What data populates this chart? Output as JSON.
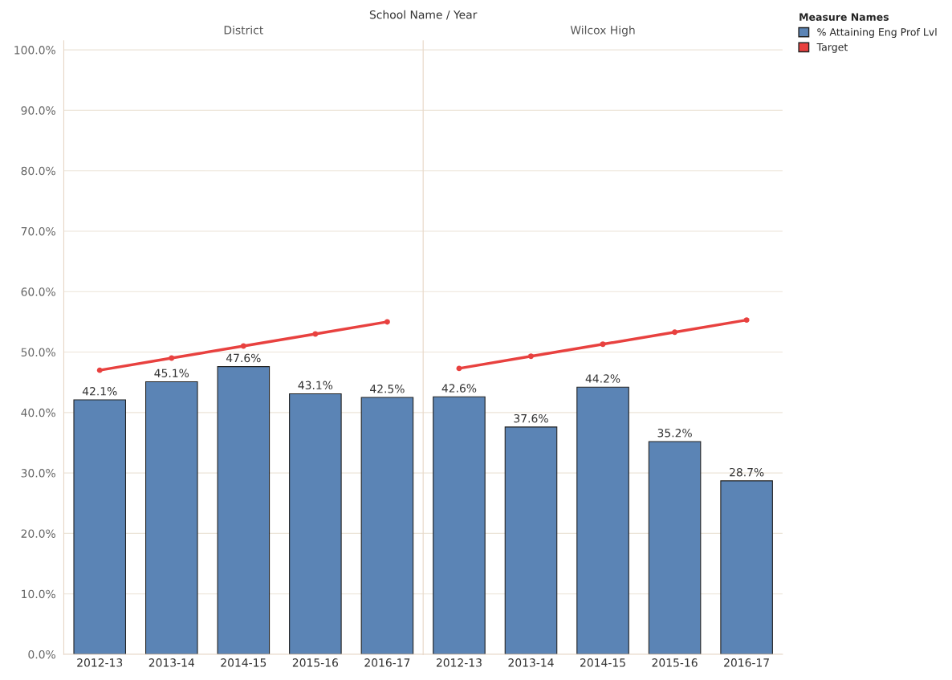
{
  "chart_data": [
    {
      "type": "bar",
      "title": "District",
      "annotations": [
        "School Name / Year"
      ],
      "categories": [
        "2012-13",
        "2013-14",
        "2014-15",
        "2015-16",
        "2016-17"
      ],
      "series": [
        {
          "color": "#5b84b5",
          "values": [
            42.1,
            45.1,
            47.6,
            43.1,
            42.5
          ],
          "value_labels": [
            "42.1%",
            "45.1%",
            "47.6%",
            "43.1%",
            "42.5%"
          ]
        },
        {
          "type": "line",
          "color": "#e8413f",
          "values": [
            47.0,
            49.0,
            51.0,
            53.0,
            55.0
          ]
        }
      ],
      "ylim": [
        0,
        101.5
      ],
      "yticks": [
        {
          "value": 0,
          "label": "0.0%"
        },
        {
          "value": 10,
          "label": "10.0%"
        },
        {
          "value": 20,
          "label": "20.0%"
        },
        {
          "value": 30,
          "label": "30.0%"
        },
        {
          "value": 40,
          "label": "40.0%"
        },
        {
          "value": 50,
          "label": "50.0%"
        },
        {
          "value": 60,
          "label": "60.0%"
        },
        {
          "value": 70,
          "label": "70.0%"
        },
        {
          "value": 80,
          "label": "80.0%"
        },
        {
          "value": 90,
          "label": "90.0%"
        },
        {
          "value": 100,
          "label": "100.0%"
        }
      ],
      "grid": "y",
      "marker": "circle",
      "legend": false
    },
    {
      "type": "bar",
      "title": "Wilcox High",
      "categories": [
        "2012-13",
        "2013-14",
        "2014-15",
        "2015-16",
        "2016-17"
      ],
      "series": [
        {
          "name": "% Attaining Eng Prof Lvl",
          "color": "#5b84b5",
          "values": [
            42.6,
            37.6,
            44.2,
            35.2,
            28.7
          ],
          "value_labels": [
            "42.6%",
            "37.6%",
            "44.2%",
            "35.2%",
            "28.7%"
          ]
        },
        {
          "type": "line",
          "name": "Target",
          "color": "#e8413f",
          "values": [
            47.3,
            49.3,
            51.3,
            53.3,
            55.3
          ]
        }
      ],
      "ylim": [
        0,
        101.5
      ],
      "yticks": [
        {
          "value": 0,
          "label": null
        },
        {
          "value": 10,
          "label": null
        },
        {
          "value": 20,
          "label": null
        },
        {
          "value": 30,
          "label": null
        },
        {
          "value": 40,
          "label": null
        },
        {
          "value": 50,
          "label": null
        },
        {
          "value": 60,
          "label": null
        },
        {
          "value": 70,
          "label": null
        },
        {
          "value": 80,
          "label": null
        },
        {
          "value": 90,
          "label": null
        },
        {
          "value": 100,
          "label": null
        }
      ],
      "tick_labels": "x",
      "grid": "y",
      "marker": "circle",
      "legend": "right",
      "legend_title": "Measure Names"
    }
  ]
}
